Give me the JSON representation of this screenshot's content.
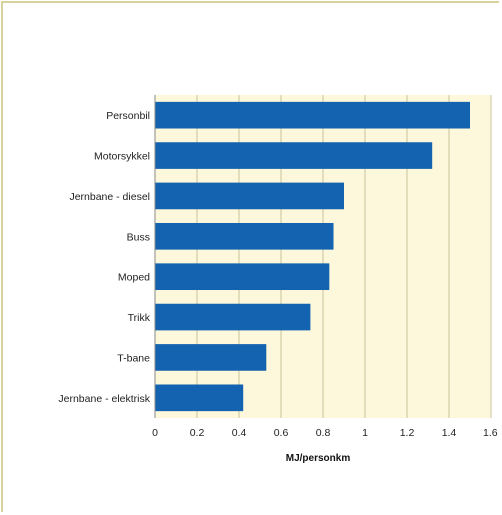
{
  "chart_data": {
    "type": "bar",
    "orientation": "horizontal",
    "title": "",
    "xlabel": "MJ/personkm",
    "ylabel": "",
    "categories": [
      "Personbil",
      "Motorsykkel",
      "Jernbane - diesel",
      "Buss",
      "Moped",
      "Trikk",
      "T-bane",
      "Jernbane - elektrisk"
    ],
    "values": [
      1.5,
      1.32,
      0.9,
      0.85,
      0.83,
      0.74,
      0.53,
      0.42
    ],
    "xlim": [
      0,
      1.6
    ],
    "xticks": [
      "0",
      "0.2",
      "0.4",
      "0.6",
      "0.8",
      "1",
      "1.2",
      "1.4",
      "1.6"
    ],
    "grid": "vertical",
    "colors": {
      "bar": "#1463b0",
      "plot_background": "#fdf8dc",
      "grid": "#c8c39a",
      "frame": "#d8d29c"
    }
  }
}
